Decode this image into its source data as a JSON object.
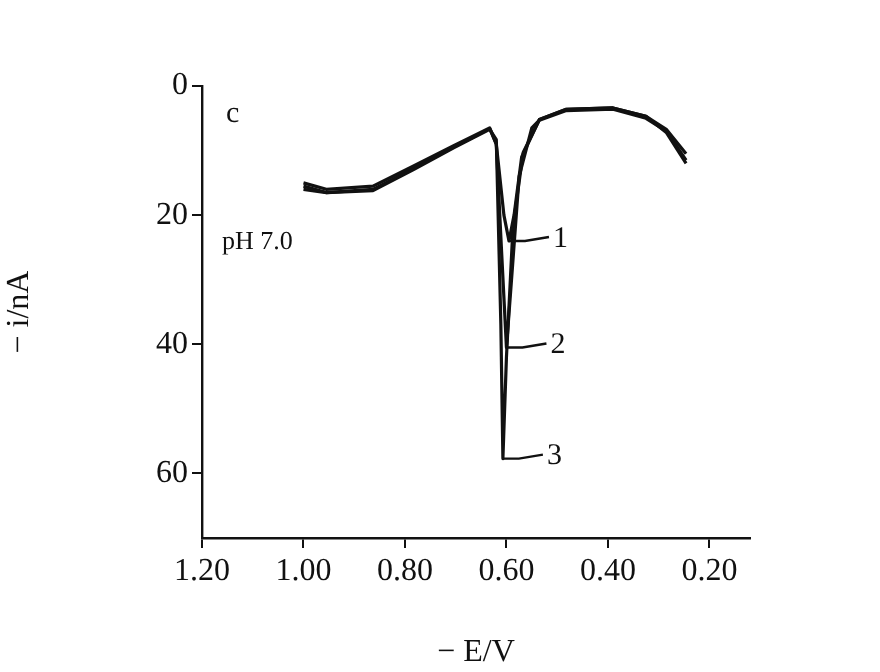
{
  "chart_data": {
    "type": "line",
    "xlabel": "− E/V",
    "ylabel": "− i/nA",
    "xlim": [
      1.2,
      0.12
    ],
    "xticks": [
      {
        "value": 1.2,
        "label": "1.20"
      },
      {
        "value": 1.0,
        "label": "1.00"
      },
      {
        "value": 0.8,
        "label": "0.80"
      },
      {
        "value": 0.6,
        "label": "0.60"
      },
      {
        "value": 0.4,
        "label": "0.40"
      },
      {
        "value": 0.2,
        "label": "0.20"
      }
    ],
    "ylim": [
      70,
      0
    ],
    "yticks": [
      0,
      20,
      40,
      60
    ],
    "grid": false,
    "legend": false,
    "marker": "none",
    "line_style": "solid",
    "series": [
      {
        "color": "#111111",
        "x": [
          1.0,
          0.955,
          0.863,
          0.784,
          0.705,
          0.633,
          0.62,
          0.605,
          0.595,
          0.585,
          0.57,
          0.535,
          0.482,
          0.39,
          0.325,
          0.285,
          0.246
        ],
        "values": [
          15,
          16,
          15.5,
          12.4,
          9.3,
          6.5,
          9,
          20,
          24,
          20,
          11,
          5.2,
          3.6,
          3.4,
          4.7,
          6.7,
          10.5
        ]
      },
      {
        "color": "#111111",
        "x": [
          1.0,
          0.955,
          0.863,
          0.784,
          0.705,
          0.633,
          0.62,
          0.61,
          0.6,
          0.59,
          0.575,
          0.55,
          0.535,
          0.482,
          0.39,
          0.325,
          0.285,
          0.246
        ],
        "values": [
          15.5,
          16.5,
          16,
          12.8,
          9.5,
          6.6,
          9,
          25,
          40.5,
          30,
          14,
          6.5,
          5.3,
          3.8,
          3.6,
          5,
          7,
          11.5
        ]
      },
      {
        "color": "#111111",
        "x": [
          1.0,
          0.955,
          0.863,
          0.784,
          0.705,
          0.633,
          0.62,
          0.611,
          0.607,
          0.6,
          0.587,
          0.567,
          0.535,
          0.482,
          0.39,
          0.325,
          0.285,
          0.246
        ],
        "values": [
          16,
          16.5,
          16.2,
          13,
          9.6,
          6.7,
          8.3,
          37,
          57.7,
          42,
          21.7,
          10.3,
          5.2,
          3.6,
          3.4,
          4.7,
          7.2,
          12
        ]
      }
    ],
    "annotations": [
      "c",
      "pH 7.0",
      {
        "text": "1",
        "x": 0.595,
        "y": 24
      },
      {
        "text": "2",
        "x": 0.6,
        "y": 40.5
      },
      {
        "text": "3",
        "x": 0.607,
        "y": 57.7
      }
    ]
  }
}
